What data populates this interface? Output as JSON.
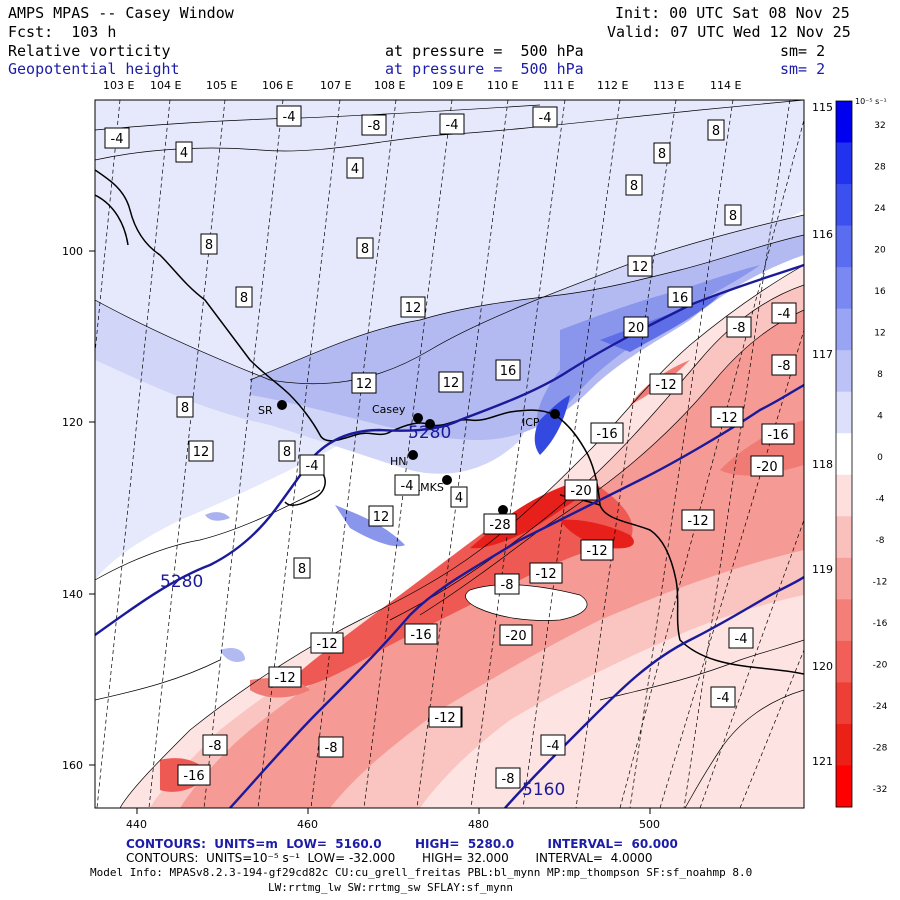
{
  "header": {
    "title": "AMPS MPAS -- Casey Window",
    "init": "Init: 00 UTC Sat 08 Nov 25",
    "fcst": "Fcst:  103 h",
    "valid": "Valid: 07 UTC Wed 12 Nov 25",
    "field1": "Relative vorticity",
    "field1_level": "at pressure =  500 hPa",
    "field1_sm": "sm= 2",
    "field2": "Geopotential height",
    "field2_level": "at pressure =  500 hPa",
    "field2_sm": "sm= 2"
  },
  "map": {
    "lon_top_labels": [
      "103 E",
      "104 E",
      "105 E",
      "106 E",
      "107 E",
      "108 E",
      "109 E",
      "110 E",
      "111 E",
      "112 E",
      "113 E",
      "114 E"
    ],
    "lon_right_labels": [
      "115 E",
      "116 E",
      "117 E",
      "118 E",
      "119 E",
      "120 E",
      "121 E"
    ],
    "x_ticks": [
      "440",
      "460",
      "480",
      "500"
    ],
    "y_ticks": [
      "100",
      "120",
      "140",
      "160"
    ],
    "stations": [
      "Casey",
      "SR",
      "HN",
      "LMKS",
      "ICP"
    ],
    "height_labels": [
      "5280",
      "5280",
      "5160"
    ],
    "vorticity_labels": [
      "-4",
      "-4",
      "-8",
      "-4",
      "-4",
      "4",
      "8",
      "4",
      "8",
      "8",
      "8",
      "8",
      "8",
      "12",
      "12",
      "16",
      "8",
      "12",
      "12",
      "16",
      "-8",
      "-4",
      "20",
      "-8",
      "-12",
      "-12",
      "-16",
      "-16",
      "-20",
      "12",
      "8",
      "-4",
      "8",
      "-4",
      "4",
      "-20",
      "-12",
      "12",
      "-28",
      "-12",
      "8",
      "-12",
      "-8",
      "-12",
      "-16",
      "-20",
      "-4",
      "-12",
      "-8",
      "-4",
      "-12",
      "-12",
      "-8",
      "-16",
      "-4",
      "-8"
    ],
    "colors": {
      "positive": "#2a3fe0",
      "negative": "#e8201c",
      "height_contour": "#1a1a9a",
      "coast": "#000000"
    }
  },
  "colorbar": {
    "unit": "10⁻⁵ s⁻¹",
    "labels": [
      "32",
      "28",
      "24",
      "20",
      "16",
      "12",
      "8",
      "4",
      "0",
      "-4",
      "-8",
      "-12",
      "-16",
      "-20",
      "-24",
      "-28",
      "-32"
    ],
    "colors": [
      "#0000f0",
      "#2233f0",
      "#3c50f0",
      "#5a6cf0",
      "#7a88f2",
      "#9aa4f4",
      "#bcc2f8",
      "#dde0fb",
      "#ffffff",
      "#fde0de",
      "#fac0bc",
      "#f79f9a",
      "#f47f79",
      "#f15f58",
      "#ee3f37",
      "#eb2017",
      "#ff0000"
    ]
  },
  "footer": {
    "line1_label": "CONTOURS:  UNITS=m  LOW=  5160.0        HIGH=  5280.0        INTERVAL=  60.000",
    "line2_label": "CONTOURS:  UNITS=10⁻⁵ s⁻¹  LOW= -32.000       HIGH= 32.000       INTERVAL=  4.0000",
    "line3": "Model Info: MPASv8.2.3-194-gf29cd82c CU:cu_grell_freitas PBL:bl_mynn MP:mp_thompson SF:sf_noahmp 8.0",
    "line4": "LW:rrtmg_lw SW:rrtmg_sw SFLAY:sf_mynn"
  }
}
